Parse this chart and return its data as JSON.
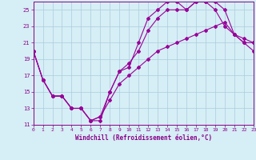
{
  "xlabel": "Windchill (Refroidissement éolien,°C)",
  "bg_color": "#d6eef5",
  "grid_color": "#aaccdd",
  "line_color": "#990099",
  "text_color": "#880088",
  "xlim": [
    0,
    23
  ],
  "ylim": [
    11,
    26
  ],
  "yticks": [
    11,
    13,
    15,
    17,
    19,
    21,
    23,
    25
  ],
  "xticks": [
    0,
    1,
    2,
    3,
    4,
    5,
    6,
    7,
    8,
    9,
    10,
    11,
    12,
    13,
    14,
    15,
    16,
    17,
    18,
    19,
    20,
    21,
    22,
    23
  ],
  "series1_x": [
    0,
    1,
    2,
    3,
    4,
    5,
    6,
    7,
    8,
    9,
    10,
    11,
    12,
    13,
    14,
    15,
    16,
    17,
    18,
    19,
    20,
    21,
    22,
    23
  ],
  "series1_y": [
    20,
    16.5,
    14.5,
    14.5,
    13,
    13,
    11.5,
    11.5,
    15,
    17.5,
    18,
    21,
    24,
    25,
    26,
    26,
    25,
    26,
    26,
    25,
    23,
    22,
    21,
    21
  ],
  "series2_x": [
    0,
    1,
    2,
    3,
    4,
    5,
    6,
    7,
    8,
    9,
    10,
    11,
    12,
    13,
    14,
    15,
    16,
    17,
    18,
    19,
    20,
    21,
    22,
    23
  ],
  "series2_y": [
    20,
    16.5,
    14.5,
    14.5,
    13,
    13,
    11.5,
    12,
    15,
    17.5,
    18.5,
    20,
    22.5,
    24,
    25,
    25,
    25,
    26,
    26,
    26,
    25,
    22,
    21,
    20
  ],
  "series3_x": [
    0,
    1,
    2,
    3,
    4,
    5,
    6,
    7,
    8,
    9,
    10,
    11,
    12,
    13,
    14,
    15,
    16,
    17,
    18,
    19,
    20,
    21,
    22,
    23
  ],
  "series3_y": [
    20,
    16.5,
    14.5,
    14.5,
    13,
    13,
    11.5,
    12,
    14,
    16,
    17,
    18,
    19,
    20,
    20.5,
    21,
    21.5,
    22,
    22.5,
    23,
    23.5,
    22,
    21.5,
    21
  ]
}
